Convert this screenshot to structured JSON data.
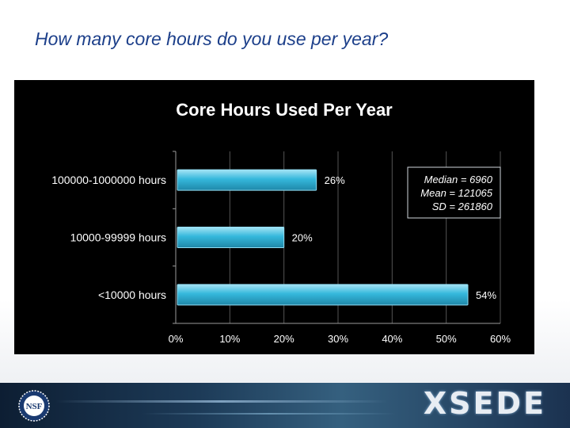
{
  "slide": {
    "title": "How many core hours do you use per year?"
  },
  "chart_data": {
    "type": "bar",
    "orientation": "horizontal",
    "title": "Core Hours Used Per Year",
    "categories": [
      "100000-1000000 hours",
      "10000-99999 hours",
      "<10000 hours"
    ],
    "values": [
      26,
      20,
      54
    ],
    "value_labels": [
      "26%",
      "20%",
      "54%"
    ],
    "xlim": [
      0,
      60
    ],
    "xticks": [
      0,
      10,
      20,
      30,
      40,
      50,
      60
    ],
    "xtick_labels": [
      "0%",
      "10%",
      "20%",
      "30%",
      "40%",
      "50%",
      "60%"
    ],
    "xlabel": "",
    "ylabel": "",
    "grid": "vertical",
    "annotation": {
      "lines": [
        "Median = 6960",
        "Mean = 121065",
        "SD = 261860"
      ],
      "placement": "top-right"
    },
    "colors": {
      "bar": "#35b8dc",
      "bar_light": "#a6e4f5",
      "bar_dark": "#1f87a8",
      "plot_background": "#000000",
      "grid": "#555555",
      "text": "#ffffff"
    }
  },
  "footer": {
    "nsf_logo_text": "NSF",
    "xsede_logo_text": "XSEDE"
  }
}
